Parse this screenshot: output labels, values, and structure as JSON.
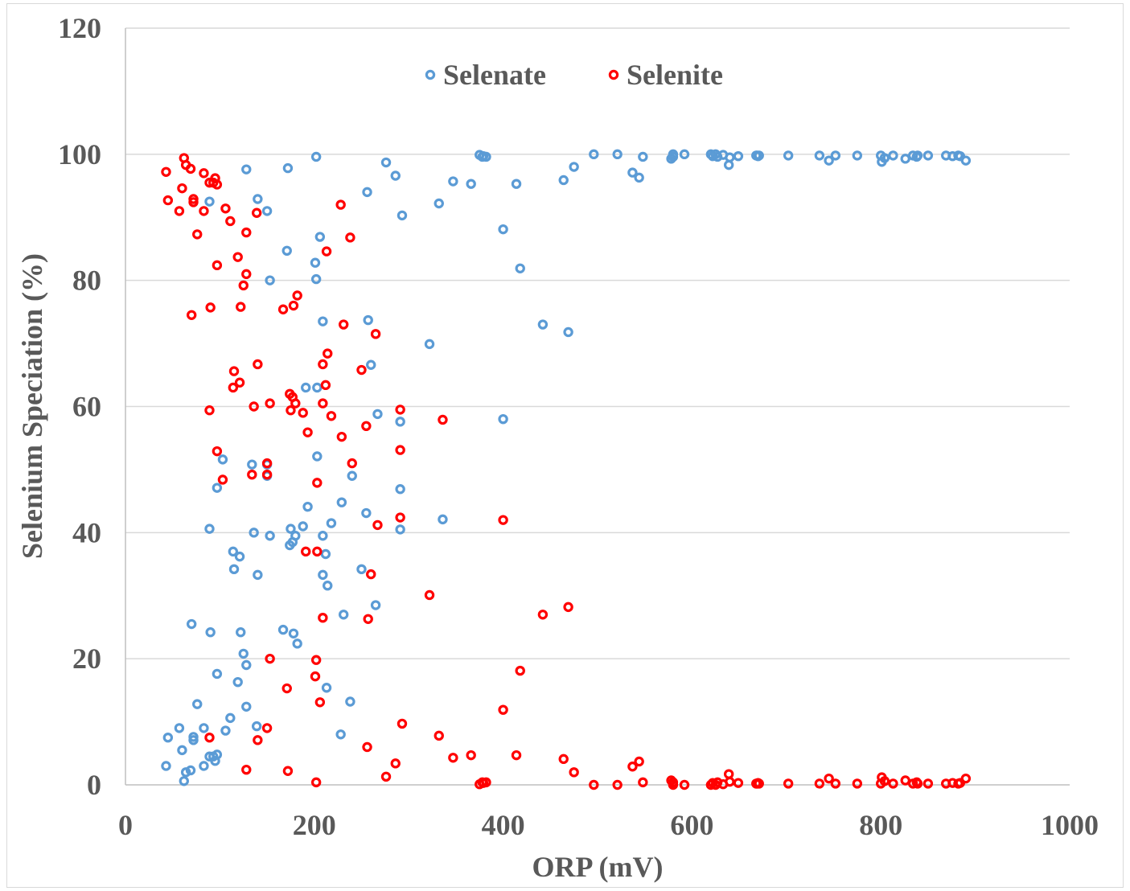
{
  "chart_data": {
    "type": "scatter",
    "title": "",
    "xlabel": "ORP (mV)",
    "ylabel": "Selenium Speciation (%)",
    "xlim": [
      0,
      1000
    ],
    "ylim": [
      0,
      120
    ],
    "xticks": [
      0,
      200,
      400,
      600,
      800,
      1000
    ],
    "yticks": [
      0,
      20,
      40,
      60,
      80,
      100,
      120
    ],
    "x_tick_labels": [
      "0",
      "200",
      "400",
      "600",
      "800",
      "1000"
    ],
    "y_tick_labels": [
      "0",
      "20",
      "40",
      "60",
      "80",
      "100",
      "120"
    ],
    "grid": "horizontal",
    "legend_position": "top-center",
    "series": [
      {
        "name": "Selenate",
        "color": "#5b9bd5",
        "points": [
          [
            43,
            3.0
          ],
          [
            45,
            7.5
          ],
          [
            57,
            9.0
          ],
          [
            60,
            5.5
          ],
          [
            62,
            0.6
          ],
          [
            64,
            2.0
          ],
          [
            69,
            2.3
          ],
          [
            72,
            7.1
          ],
          [
            72,
            7.6
          ],
          [
            70,
            25.5
          ],
          [
            76,
            12.8
          ],
          [
            83,
            9.0
          ],
          [
            83,
            3.0
          ],
          [
            89,
            4.5
          ],
          [
            90,
            24.2
          ],
          [
            93,
            4.5
          ],
          [
            95,
            3.8
          ],
          [
            97,
            4.8
          ],
          [
            97,
            17.6
          ],
          [
            89,
            40.6
          ],
          [
            89,
            92.5
          ],
          [
            97,
            47.1
          ],
          [
            103,
            51.6
          ],
          [
            106,
            8.6
          ],
          [
            111,
            10.6
          ],
          [
            114,
            37.0
          ],
          [
            115,
            34.2
          ],
          [
            119,
            16.3
          ],
          [
            121,
            36.2
          ],
          [
            122,
            24.2
          ],
          [
            125,
            20.8
          ],
          [
            128,
            19.0
          ],
          [
            128,
            12.4
          ],
          [
            128,
            97.6
          ],
          [
            134,
            50.8
          ],
          [
            136,
            40.0
          ],
          [
            140,
            33.3
          ],
          [
            140,
            92.9
          ],
          [
            139,
            9.3
          ],
          [
            150,
            50.8
          ],
          [
            150,
            49.0
          ],
          [
            150,
            91.0
          ],
          [
            153,
            80.0
          ],
          [
            153,
            39.5
          ],
          [
            167,
            24.6
          ],
          [
            171,
            84.7
          ],
          [
            172,
            97.8
          ],
          [
            174,
            38.0
          ],
          [
            175,
            40.6
          ],
          [
            177,
            38.5
          ],
          [
            178,
            24.0
          ],
          [
            180,
            39.5
          ],
          [
            182,
            22.4
          ],
          [
            188,
            41.0
          ],
          [
            191,
            63.0
          ],
          [
            193,
            44.1
          ],
          [
            201,
            82.8
          ],
          [
            202,
            80.2
          ],
          [
            202,
            99.6
          ],
          [
            203,
            52.1
          ],
          [
            203,
            63.0
          ],
          [
            206,
            86.9
          ],
          [
            209,
            33.3
          ],
          [
            209,
            39.5
          ],
          [
            209,
            73.5
          ],
          [
            212,
            36.6
          ],
          [
            213,
            15.4
          ],
          [
            214,
            31.6
          ],
          [
            218,
            41.5
          ],
          [
            228,
            8.0
          ],
          [
            229,
            44.8
          ],
          [
            231,
            27.0
          ],
          [
            238,
            13.2
          ],
          [
            240,
            49.0
          ],
          [
            250,
            34.2
          ],
          [
            255,
            43.1
          ],
          [
            256,
            94.0
          ],
          [
            257,
            73.7
          ],
          [
            260,
            66.6
          ],
          [
            265,
            28.5
          ],
          [
            267,
            58.8
          ],
          [
            276,
            98.7
          ],
          [
            286,
            96.6
          ],
          [
            291,
            57.6
          ],
          [
            291,
            46.9
          ],
          [
            291,
            40.5
          ],
          [
            293,
            90.3
          ],
          [
            322,
            69.9
          ],
          [
            332,
            92.2
          ],
          [
            336,
            42.1
          ],
          [
            347,
            95.7
          ],
          [
            366,
            95.3
          ],
          [
            375,
            99.9
          ],
          [
            378,
            99.6
          ],
          [
            379,
            99.7
          ],
          [
            382,
            99.6
          ],
          [
            400,
            88.1
          ],
          [
            400,
            58.0
          ],
          [
            414,
            95.3
          ],
          [
            418,
            81.9
          ],
          [
            442,
            73.0
          ],
          [
            464,
            95.9
          ],
          [
            469,
            71.8
          ],
          [
            475,
            98.0
          ],
          [
            496,
            100.0
          ],
          [
            521,
            100.0
          ],
          [
            537,
            97.1
          ],
          [
            544,
            96.3
          ],
          [
            548,
            99.6
          ],
          [
            578,
            99.3
          ],
          [
            580,
            99.6
          ],
          [
            580,
            100.0
          ],
          [
            592,
            100.0
          ],
          [
            620,
            100.0
          ],
          [
            622,
            99.7
          ],
          [
            625,
            100.0
          ],
          [
            627,
            99.6
          ],
          [
            633,
            99.9
          ],
          [
            639,
            98.3
          ],
          [
            640,
            99.5
          ],
          [
            649,
            99.7
          ],
          [
            668,
            99.8
          ],
          [
            669,
            99.8
          ],
          [
            670,
            99.7
          ],
          [
            671,
            99.8
          ],
          [
            702,
            99.8
          ],
          [
            735,
            99.8
          ],
          [
            745,
            99.0
          ],
          [
            752,
            99.8
          ],
          [
            775,
            99.8
          ],
          [
            800,
            99.8
          ],
          [
            801,
            98.8
          ],
          [
            804,
            99.4
          ],
          [
            813,
            99.8
          ],
          [
            826,
            99.3
          ],
          [
            834,
            99.8
          ],
          [
            838,
            99.6
          ],
          [
            839,
            99.8
          ],
          [
            850,
            99.8
          ],
          [
            869,
            99.8
          ],
          [
            876,
            99.7
          ],
          [
            882,
            99.8
          ],
          [
            884,
            99.7
          ],
          [
            890,
            99.0
          ]
        ]
      },
      {
        "name": "Selenite",
        "color": "#ff0000",
        "points": [
          [
            43,
            97.2
          ],
          [
            45,
            92.7
          ],
          [
            57,
            91.0
          ],
          [
            60,
            94.6
          ],
          [
            62,
            99.4
          ],
          [
            64,
            98.3
          ],
          [
            69,
            97.7
          ],
          [
            72,
            92.9
          ],
          [
            72,
            92.4
          ],
          [
            70,
            74.5
          ],
          [
            76,
            87.3
          ],
          [
            83,
            91.0
          ],
          [
            83,
            97.0
          ],
          [
            89,
            95.5
          ],
          [
            90,
            75.7
          ],
          [
            93,
            95.5
          ],
          [
            95,
            96.2
          ],
          [
            97,
            95.2
          ],
          [
            97,
            82.4
          ],
          [
            89,
            59.4
          ],
          [
            89,
            7.5
          ],
          [
            97,
            52.9
          ],
          [
            103,
            48.4
          ],
          [
            106,
            91.4
          ],
          [
            111,
            89.4
          ],
          [
            114,
            63.0
          ],
          [
            115,
            65.6
          ],
          [
            119,
            83.7
          ],
          [
            121,
            63.8
          ],
          [
            122,
            75.8
          ],
          [
            125,
            79.2
          ],
          [
            128,
            81.0
          ],
          [
            128,
            87.6
          ],
          [
            128,
            2.4
          ],
          [
            134,
            49.2
          ],
          [
            136,
            60.0
          ],
          [
            140,
            66.7
          ],
          [
            140,
            7.1
          ],
          [
            139,
            90.7
          ],
          [
            150,
            49.2
          ],
          [
            150,
            51.0
          ],
          [
            150,
            9.0
          ],
          [
            153,
            20.0
          ],
          [
            153,
            60.5
          ],
          [
            167,
            75.4
          ],
          [
            171,
            15.3
          ],
          [
            172,
            2.2
          ],
          [
            174,
            62.0
          ],
          [
            175,
            59.4
          ],
          [
            177,
            61.5
          ],
          [
            178,
            76.0
          ],
          [
            180,
            60.5
          ],
          [
            182,
            77.6
          ],
          [
            188,
            59.0
          ],
          [
            191,
            37.0
          ],
          [
            193,
            55.9
          ],
          [
            201,
            17.2
          ],
          [
            202,
            19.8
          ],
          [
            202,
            0.4
          ],
          [
            203,
            47.9
          ],
          [
            203,
            37.0
          ],
          [
            206,
            13.1
          ],
          [
            209,
            66.7
          ],
          [
            209,
            60.5
          ],
          [
            209,
            26.5
          ],
          [
            212,
            63.4
          ],
          [
            213,
            84.6
          ],
          [
            214,
            68.4
          ],
          [
            218,
            58.5
          ],
          [
            228,
            92.0
          ],
          [
            229,
            55.2
          ],
          [
            231,
            73.0
          ],
          [
            238,
            86.8
          ],
          [
            240,
            51.0
          ],
          [
            250,
            65.8
          ],
          [
            255,
            56.9
          ],
          [
            256,
            6.0
          ],
          [
            257,
            26.3
          ],
          [
            260,
            33.4
          ],
          [
            265,
            71.5
          ],
          [
            267,
            41.2
          ],
          [
            276,
            1.3
          ],
          [
            286,
            3.4
          ],
          [
            291,
            42.4
          ],
          [
            291,
            53.1
          ],
          [
            291,
            59.5
          ],
          [
            293,
            9.7
          ],
          [
            322,
            30.1
          ],
          [
            332,
            7.8
          ],
          [
            336,
            57.9
          ],
          [
            347,
            4.3
          ],
          [
            366,
            4.7
          ],
          [
            375,
            0.1
          ],
          [
            378,
            0.4
          ],
          [
            379,
            0.3
          ],
          [
            382,
            0.4
          ],
          [
            400,
            11.9
          ],
          [
            400,
            42.0
          ],
          [
            414,
            4.7
          ],
          [
            418,
            18.1
          ],
          [
            442,
            27.0
          ],
          [
            464,
            4.1
          ],
          [
            469,
            28.2
          ],
          [
            475,
            2.0
          ],
          [
            496,
            0.0
          ],
          [
            521,
            0.0
          ],
          [
            537,
            2.9
          ],
          [
            544,
            3.7
          ],
          [
            548,
            0.4
          ],
          [
            578,
            0.7
          ],
          [
            580,
            0.4
          ],
          [
            580,
            0.0
          ],
          [
            592,
            0.0
          ],
          [
            620,
            0.0
          ],
          [
            622,
            0.3
          ],
          [
            625,
            0.0
          ],
          [
            627,
            0.4
          ],
          [
            633,
            0.1
          ],
          [
            639,
            1.7
          ],
          [
            640,
            0.5
          ],
          [
            649,
            0.3
          ],
          [
            668,
            0.2
          ],
          [
            669,
            0.2
          ],
          [
            670,
            0.3
          ],
          [
            671,
            0.2
          ],
          [
            702,
            0.2
          ],
          [
            735,
            0.2
          ],
          [
            745,
            1.0
          ],
          [
            752,
            0.2
          ],
          [
            775,
            0.2
          ],
          [
            800,
            0.2
          ],
          [
            801,
            1.2
          ],
          [
            804,
            0.6
          ],
          [
            813,
            0.2
          ],
          [
            826,
            0.7
          ],
          [
            834,
            0.2
          ],
          [
            838,
            0.4
          ],
          [
            839,
            0.2
          ],
          [
            850,
            0.2
          ],
          [
            869,
            0.2
          ],
          [
            876,
            0.3
          ],
          [
            882,
            0.2
          ],
          [
            884,
            0.3
          ],
          [
            890,
            1.0
          ]
        ]
      }
    ]
  }
}
